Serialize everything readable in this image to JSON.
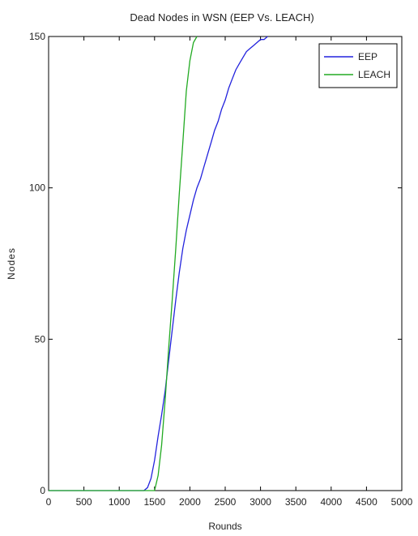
{
  "chart_data": {
    "type": "line",
    "title": "Dead Nodes in WSN (EEP Vs. LEACH)",
    "xlabel": "Rounds",
    "ylabel": "Nodes",
    "xlim": [
      0,
      5000
    ],
    "ylim": [
      0,
      150
    ],
    "xticks": [
      0,
      500,
      1000,
      1500,
      2000,
      2500,
      3000,
      3500,
      4000,
      4500,
      5000
    ],
    "yticks": [
      0,
      50,
      100,
      150
    ],
    "grid": false,
    "legend_position": "top-right",
    "series": [
      {
        "name": "EEP",
        "color": "#2222dd",
        "x": [
          0,
          1350,
          1400,
          1450,
          1500,
          1550,
          1600,
          1650,
          1700,
          1750,
          1800,
          1850,
          1900,
          1950,
          2000,
          2050,
          2100,
          2150,
          2200,
          2250,
          2300,
          2350,
          2400,
          2450,
          2500,
          2550,
          2600,
          2650,
          2700,
          2750,
          2800,
          2850,
          2900,
          2950,
          3000,
          3050,
          3100
        ],
        "y": [
          0,
          0,
          1,
          4,
          10,
          18,
          25,
          33,
          43,
          53,
          63,
          72,
          80,
          86,
          91,
          96,
          100,
          103,
          107,
          111,
          115,
          119,
          122,
          126,
          129,
          133,
          136,
          139,
          141,
          143,
          145,
          146,
          147,
          148,
          149,
          149,
          150
        ]
      },
      {
        "name": "LEACH",
        "color": "#22aa22",
        "x": [
          0,
          1500,
          1550,
          1600,
          1650,
          1700,
          1750,
          1800,
          1850,
          1900,
          1950,
          2000,
          2050,
          2100
        ],
        "y": [
          0,
          0,
          5,
          15,
          30,
          47,
          63,
          80,
          98,
          115,
          132,
          142,
          148,
          150
        ]
      }
    ]
  }
}
